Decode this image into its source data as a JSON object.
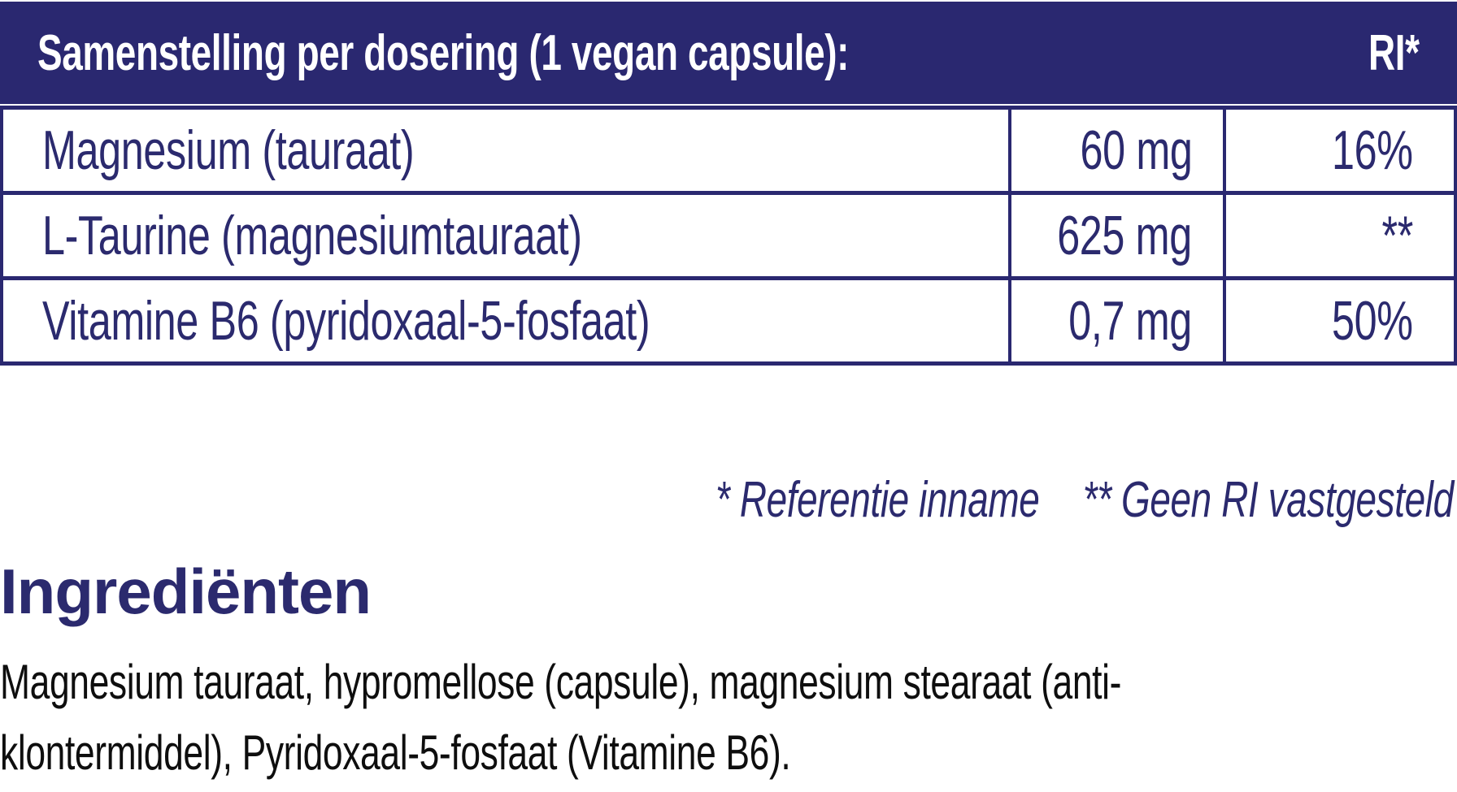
{
  "colors": {
    "navy": "#2a2870",
    "text-navy": "#2b2a6e",
    "ink": "#0e0e0e",
    "paper": "#ffffff"
  },
  "header": {
    "title": "Samenstelling per dosering (1 vegan capsule):",
    "ri_label": "RI*"
  },
  "table": {
    "columns": [
      "ingredient",
      "amount",
      "ri"
    ],
    "rows": [
      {
        "name": "Magnesium (tauraat)",
        "amount": "60 mg",
        "ri": "16%"
      },
      {
        "name": "L-Taurine (magnesiumtauraat)",
        "amount": "625 mg",
        "ri": "**"
      },
      {
        "name": "Vitamine B6 (pyridoxaal-5-fosfaat)",
        "amount": "0,7 mg",
        "ri": "50%"
      }
    ]
  },
  "footnote": {
    "ri_note": "* Referentie inname",
    "no_ri_note": "** Geen RI vastgesteld"
  },
  "ingredients": {
    "heading": "Ingrediënten",
    "lines": [
      "Magnesium tauraat, hypromellose (capsule), magnesium stearaat (anti-",
      "klontermiddel), Pyridoxaal-5-fosfaat (Vitamine B6)."
    ]
  }
}
